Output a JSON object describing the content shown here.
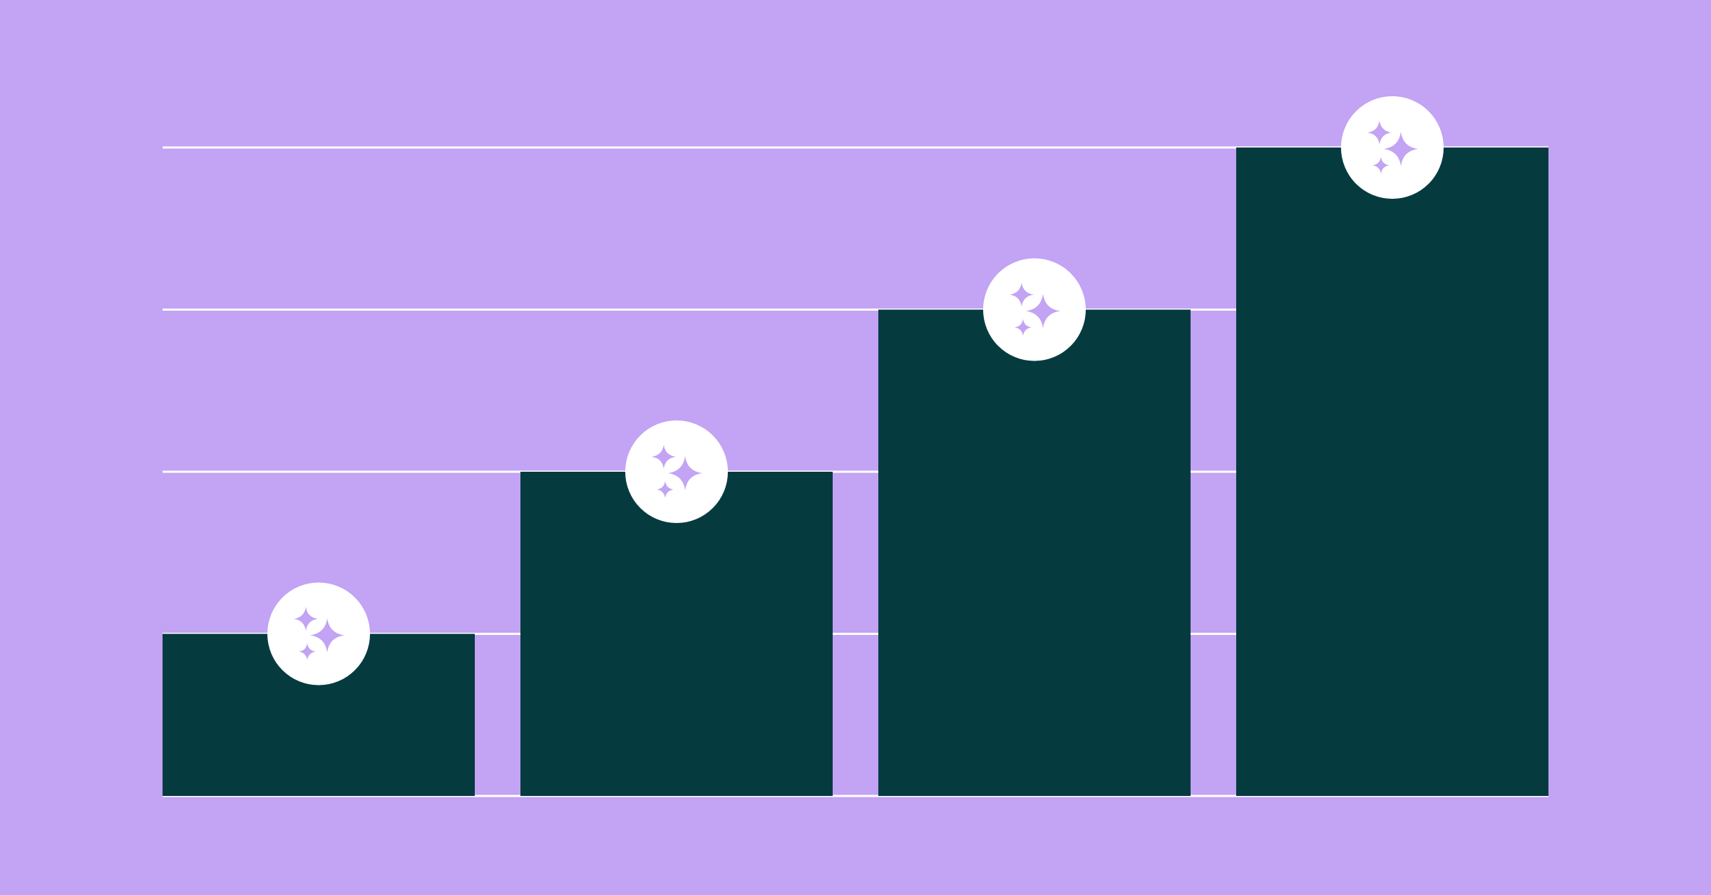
{
  "chart_data": {
    "type": "bar",
    "values": [
      1,
      2,
      3,
      4
    ],
    "color": "#053b3f",
    "ylim": [
      0,
      4
    ],
    "yticks": [
      0,
      1,
      2,
      3,
      4
    ],
    "grid": true
  }
}
